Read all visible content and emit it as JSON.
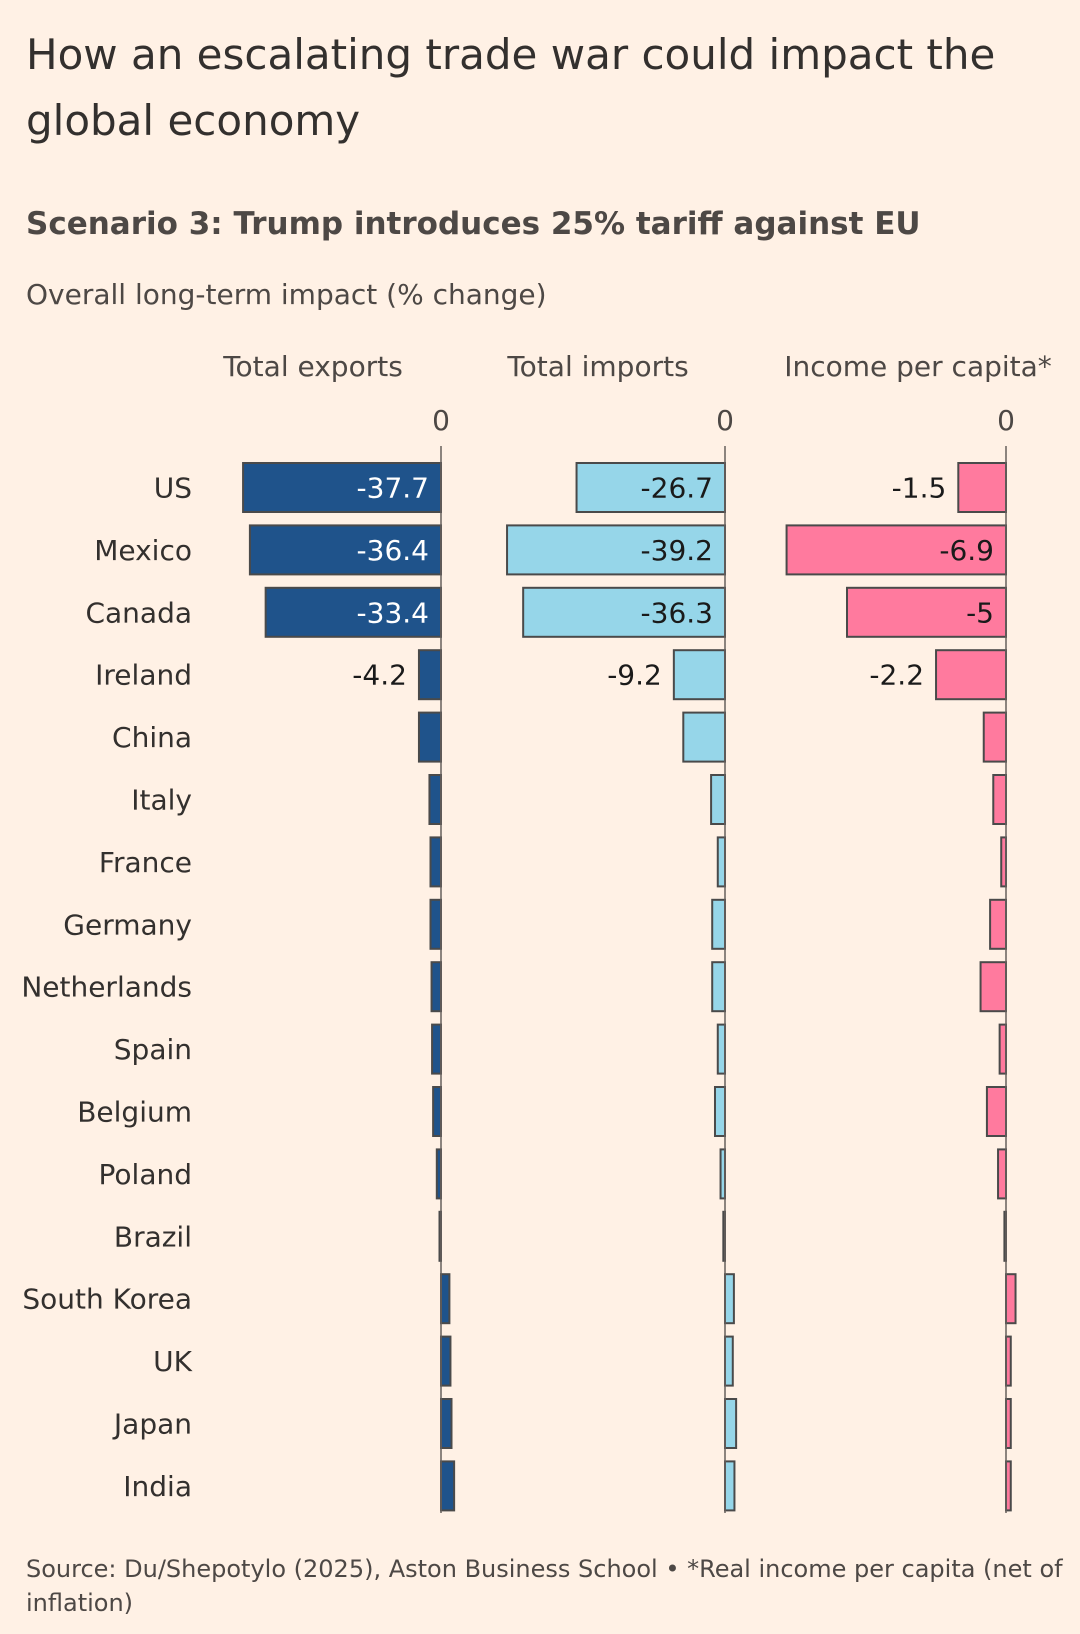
{
  "title": "How an escalating trade war could impact the global economy",
  "subtitle": "Scenario 3: Trump introduces 25% tariff against EU",
  "description": "Overall long-term impact (% change)",
  "source": "Source: Du/Shepotylo (2025), Aston Business School • *Real income per capita (net of inflation)",
  "colors": {
    "background": "#fff1e5",
    "exports": "#1f538b",
    "imports": "#96d6e9",
    "income": "#ff7a9e",
    "outline": "#4a4a4a",
    "text": "#33302e"
  },
  "chart_data": {
    "type": "bar",
    "orientation": "horizontal",
    "categories": [
      "US",
      "Mexico",
      "Canada",
      "Ireland",
      "China",
      "Italy",
      "France",
      "Germany",
      "Netherlands",
      "Spain",
      "Belgium",
      "Poland",
      "Brazil",
      "South Korea",
      "UK",
      "Japan",
      "India"
    ],
    "series": [
      {
        "name": "Total exports",
        "zero_label": "0",
        "values": [
          -37.7,
          -36.4,
          -33.4,
          -4.2,
          -4.2,
          -2.2,
          -2.0,
          -2.0,
          -1.8,
          -1.7,
          -1.5,
          -0.8,
          -0.2,
          1.6,
          1.8,
          2.0,
          2.5
        ],
        "labels": [
          "-37.7",
          "-36.4",
          "-33.4",
          "-4.2",
          "",
          "",
          "",
          "",
          "",
          "",
          "",
          "",
          "",
          "",
          "",
          "",
          ""
        ]
      },
      {
        "name": "Total imports",
        "zero_label": "0",
        "values": [
          -26.7,
          -39.2,
          -36.3,
          -9.2,
          -7.5,
          -2.5,
          -1.3,
          -2.3,
          -2.3,
          -1.3,
          -1.8,
          -0.8,
          -0.3,
          1.6,
          1.4,
          2.0,
          1.7
        ],
        "labels": [
          "-26.7",
          "-39.2",
          "-36.3",
          "-9.2",
          "",
          "",
          "",
          "",
          "",
          "",
          "",
          "",
          "",
          "",
          "",
          "",
          ""
        ]
      },
      {
        "name": "Income per capita*",
        "zero_label": "0",
        "values": [
          -1.5,
          -6.9,
          -5,
          -2.2,
          -0.7,
          -0.4,
          -0.15,
          -0.5,
          -0.8,
          -0.2,
          -0.6,
          -0.25,
          -0.05,
          0.3,
          0.15,
          0.15,
          0.15
        ],
        "labels": [
          "-1.5",
          "-6.9",
          "-5",
          "-2.2",
          "",
          "",
          "",
          "",
          "",
          "",
          "",
          "",
          "",
          "",
          "",
          "",
          ""
        ]
      }
    ]
  }
}
